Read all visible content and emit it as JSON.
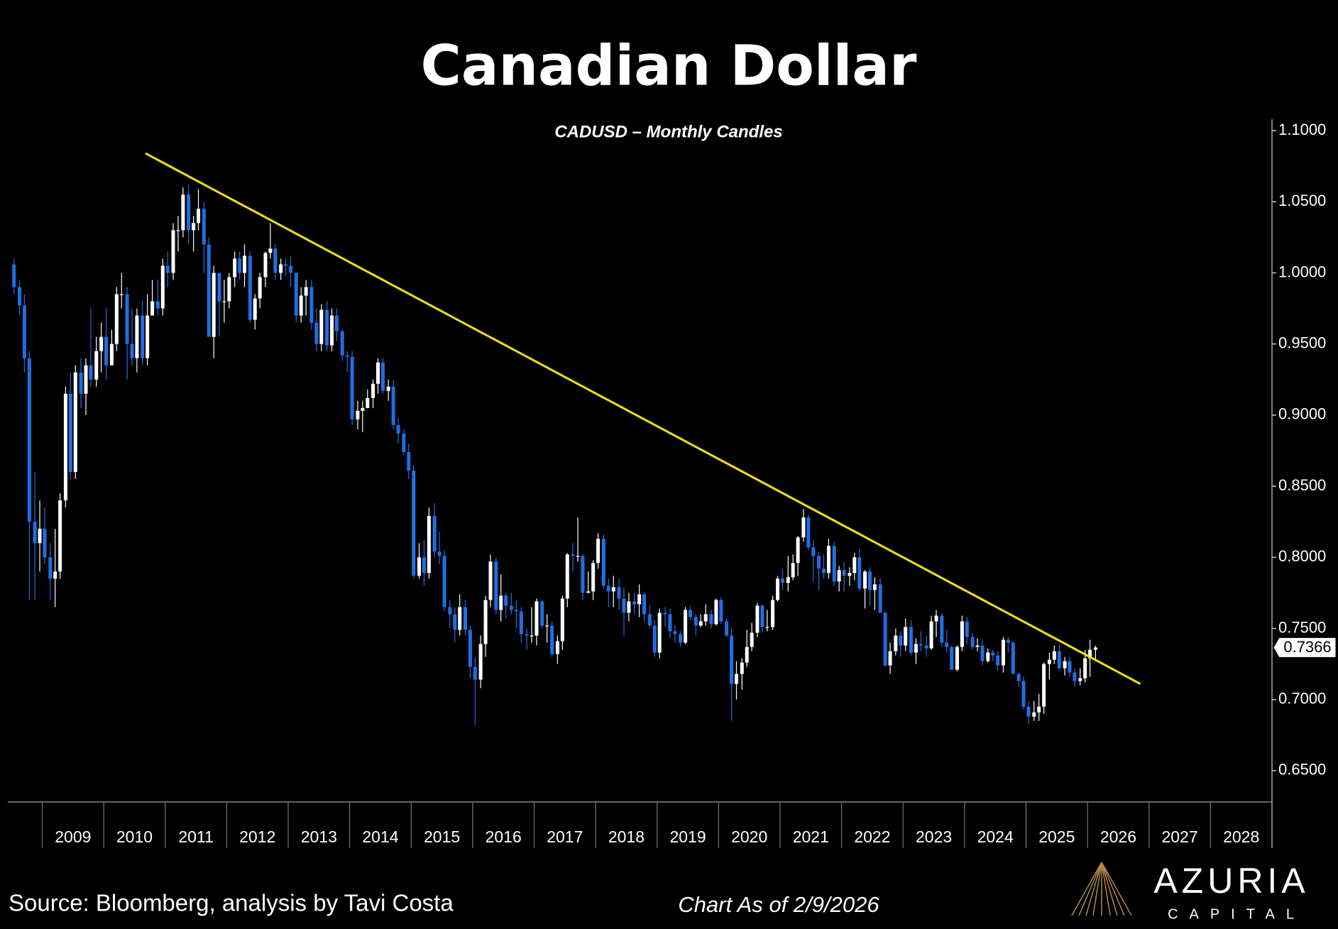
{
  "chart_data": {
    "type": "candlestick",
    "title": "Canadian Dollar",
    "subtitle": "CADUSD – Monthly Candles",
    "up_color": "#ffffff",
    "down_color": "#1f6fe3",
    "xlim": [
      2008.44,
      2029
    ],
    "xticks": [
      2009,
      2010,
      2011,
      2012,
      2013,
      2014,
      2015,
      2016,
      2017,
      2018,
      2019,
      2020,
      2021,
      2022,
      2023,
      2024,
      2025,
      2026,
      2027,
      2028
    ],
    "ylim": [
      0.628,
      1.108
    ],
    "yticks": [
      {
        "value": 0.65,
        "label": "0.6500"
      },
      {
        "value": 0.7,
        "label": "0.7000"
      },
      {
        "value": 0.75,
        "label": "0.7500"
      },
      {
        "value": 0.8,
        "label": "0.8000"
      },
      {
        "value": 0.85,
        "label": "0.8500"
      },
      {
        "value": 0.9,
        "label": "0.9000"
      },
      {
        "value": 0.95,
        "label": "0.9500"
      },
      {
        "value": 1.0,
        "label": "1.0000"
      },
      {
        "value": 1.05,
        "label": "1.0500"
      },
      {
        "value": 1.1,
        "label": "1.1000"
      }
    ],
    "trendline": {
      "color": "#f2e21a",
      "x": [
        2010.68,
        2026.86
      ],
      "y": [
        1.084,
        0.711
      ]
    },
    "x": [
      2008.54,
      2008.63,
      2008.71,
      2008.79,
      2008.88,
      2008.96,
      2009.04,
      2009.13,
      2009.21,
      2009.29,
      2009.38,
      2009.46,
      2009.54,
      2009.63,
      2009.71,
      2009.79,
      2009.88,
      2009.96,
      2010.04,
      2010.13,
      2010.21,
      2010.29,
      2010.38,
      2010.46,
      2010.54,
      2010.63,
      2010.71,
      2010.79,
      2010.88,
      2010.96,
      2011.04,
      2011.13,
      2011.21,
      2011.29,
      2011.38,
      2011.46,
      2011.54,
      2011.63,
      2011.71,
      2011.79,
      2011.88,
      2011.96,
      2012.04,
      2012.13,
      2012.21,
      2012.29,
      2012.38,
      2012.46,
      2012.54,
      2012.63,
      2012.71,
      2012.79,
      2012.88,
      2012.96,
      2013.04,
      2013.13,
      2013.21,
      2013.29,
      2013.38,
      2013.46,
      2013.54,
      2013.63,
      2013.71,
      2013.79,
      2013.88,
      2013.96,
      2014.04,
      2014.13,
      2014.21,
      2014.29,
      2014.38,
      2014.46,
      2014.54,
      2014.63,
      2014.71,
      2014.79,
      2014.88,
      2014.96,
      2015.04,
      2015.13,
      2015.21,
      2015.29,
      2015.38,
      2015.46,
      2015.54,
      2015.63,
      2015.71,
      2015.79,
      2015.88,
      2015.96,
      2016.04,
      2016.13,
      2016.21,
      2016.29,
      2016.38,
      2016.46,
      2016.54,
      2016.63,
      2016.71,
      2016.79,
      2016.88,
      2016.96,
      2017.04,
      2017.13,
      2017.21,
      2017.29,
      2017.38,
      2017.46,
      2017.54,
      2017.63,
      2017.71,
      2017.79,
      2017.88,
      2017.96,
      2018.04,
      2018.13,
      2018.21,
      2018.29,
      2018.38,
      2018.46,
      2018.54,
      2018.63,
      2018.71,
      2018.79,
      2018.88,
      2018.96,
      2019.04,
      2019.13,
      2019.21,
      2019.29,
      2019.38,
      2019.46,
      2019.54,
      2019.63,
      2019.71,
      2019.79,
      2019.88,
      2019.96,
      2020.04,
      2020.13,
      2020.21,
      2020.29,
      2020.38,
      2020.46,
      2020.54,
      2020.63,
      2020.71,
      2020.79,
      2020.88,
      2020.96,
      2021.04,
      2021.13,
      2021.21,
      2021.29,
      2021.38,
      2021.46,
      2021.54,
      2021.63,
      2021.71,
      2021.79,
      2021.88,
      2021.96,
      2022.04,
      2022.13,
      2022.21,
      2022.29,
      2022.38,
      2022.46,
      2022.54,
      2022.63,
      2022.71,
      2022.79,
      2022.88,
      2022.96,
      2023.04,
      2023.13,
      2023.21,
      2023.29,
      2023.38,
      2023.46,
      2023.54,
      2023.63,
      2023.71,
      2023.79,
      2023.88,
      2023.96,
      2024.04,
      2024.13,
      2024.21,
      2024.29,
      2024.38,
      2024.46,
      2024.54,
      2024.63,
      2024.71,
      2024.79,
      2024.88,
      2024.96,
      2025.04,
      2025.13,
      2025.21,
      2025.29,
      2025.38,
      2025.46,
      2025.54,
      2025.63,
      2025.71,
      2025.79,
      2025.88,
      2025.96,
      2026.04,
      2026.13
    ],
    "open": [
      1.006,
      0.99,
      0.977,
      0.94,
      0.825,
      0.81,
      0.82,
      0.8,
      0.785,
      0.79,
      0.84,
      0.915,
      0.86,
      0.93,
      0.915,
      0.935,
      0.925,
      0.945,
      0.955,
      0.935,
      0.95,
      0.985,
      0.985,
      0.95,
      0.94,
      0.97,
      0.94,
      0.97,
      0.98,
      0.975,
      1.005,
      1.0,
      1.03,
      1.03,
      1.055,
      1.03,
      1.035,
      1.045,
      1.02,
      0.955,
      1.0,
      0.98,
      0.98,
      0.997,
      1.01,
      1.0,
      1.012,
      0.967,
      0.982,
      0.997,
      1.014,
      1.017,
      1.0,
      1.006,
      1.005,
      1.0,
      0.97,
      0.984,
      0.99,
      0.965,
      0.95,
      0.974,
      0.949,
      0.97,
      0.959,
      0.942,
      0.941,
      0.897,
      0.903,
      0.905,
      0.912,
      0.922,
      0.937,
      0.917,
      0.92,
      0.893,
      0.887,
      0.874,
      0.861,
      0.787,
      0.8,
      0.789,
      0.829,
      0.804,
      0.801,
      0.765,
      0.76,
      0.749,
      0.765,
      0.749,
      0.723,
      0.714,
      0.739,
      0.77,
      0.797,
      0.763,
      0.773,
      0.766,
      0.763,
      0.762,
      0.746,
      0.745,
      0.745,
      0.769,
      0.752,
      0.752,
      0.732,
      0.741,
      0.771,
      0.802,
      0.801,
      0.801,
      0.775,
      0.776,
      0.796,
      0.813,
      0.78,
      0.776,
      0.779,
      0.771,
      0.761,
      0.769,
      0.767,
      0.774,
      0.76,
      0.752,
      0.733,
      0.761,
      0.76,
      0.748,
      0.746,
      0.74,
      0.763,
      0.758,
      0.752,
      0.755,
      0.76,
      0.753,
      0.77,
      0.755,
      0.745,
      0.711,
      0.718,
      0.726,
      0.737,
      0.747,
      0.766,
      0.751,
      0.751,
      0.77,
      0.785,
      0.782,
      0.786,
      0.796,
      0.814,
      0.828,
      0.807,
      0.801,
      0.792,
      0.789,
      0.808,
      0.783,
      0.791,
      0.787,
      0.789,
      0.8,
      0.778,
      0.79,
      0.777,
      0.781,
      0.761,
      0.724,
      0.734,
      0.745,
      0.738,
      0.751,
      0.733,
      0.739,
      0.738,
      0.736,
      0.755,
      0.759,
      0.74,
      0.737,
      0.721,
      0.737,
      0.755,
      0.744,
      0.737,
      0.738,
      0.727,
      0.733,
      0.731,
      0.724,
      0.742,
      0.74,
      0.718,
      0.713,
      0.695,
      0.688,
      0.691,
      0.695,
      0.725,
      0.728,
      0.734,
      0.722,
      0.727,
      0.719,
      0.713,
      0.715,
      0.729,
      0.735
    ],
    "high": [
      1.01,
      0.995,
      0.985,
      0.945,
      0.86,
      0.84,
      0.835,
      0.81,
      0.82,
      0.845,
      0.92,
      0.93,
      0.935,
      0.94,
      0.94,
      0.975,
      0.955,
      0.965,
      0.975,
      0.96,
      0.99,
      1.0,
      0.99,
      0.975,
      0.975,
      0.98,
      0.985,
      0.995,
      0.995,
      1.01,
      1.015,
      1.035,
      1.04,
      1.06,
      1.062,
      1.04,
      1.059,
      1.05,
      1.025,
      1.005,
      1.0,
      0.995,
      1.0,
      1.015,
      1.015,
      1.02,
      1.015,
      0.985,
      1.0,
      1.015,
      1.035,
      1.02,
      1.01,
      1.01,
      1.012,
      1.0,
      0.99,
      0.995,
      0.995,
      0.975,
      0.978,
      0.98,
      0.975,
      0.975,
      0.96,
      0.945,
      0.945,
      0.91,
      0.91,
      0.918,
      0.925,
      0.94,
      0.94,
      0.925,
      0.925,
      0.898,
      0.89,
      0.88,
      0.865,
      0.81,
      0.812,
      0.835,
      0.838,
      0.818,
      0.805,
      0.77,
      0.765,
      0.774,
      0.77,
      0.752,
      0.73,
      0.745,
      0.773,
      0.802,
      0.8,
      0.788,
      0.775,
      0.775,
      0.77,
      0.765,
      0.75,
      0.765,
      0.771,
      0.77,
      0.76,
      0.755,
      0.745,
      0.773,
      0.803,
      0.81,
      0.828,
      0.802,
      0.79,
      0.798,
      0.817,
      0.816,
      0.785,
      0.787,
      0.785,
      0.779,
      0.775,
      0.775,
      0.781,
      0.775,
      0.766,
      0.756,
      0.764,
      0.765,
      0.764,
      0.752,
      0.748,
      0.765,
      0.766,
      0.76,
      0.76,
      0.767,
      0.763,
      0.771,
      0.772,
      0.757,
      0.75,
      0.727,
      0.729,
      0.749,
      0.754,
      0.768,
      0.767,
      0.763,
      0.773,
      0.787,
      0.792,
      0.801,
      0.802,
      0.815,
      0.834,
      0.83,
      0.812,
      0.804,
      0.802,
      0.813,
      0.811,
      0.794,
      0.797,
      0.793,
      0.803,
      0.806,
      0.791,
      0.793,
      0.786,
      0.785,
      0.762,
      0.74,
      0.75,
      0.748,
      0.757,
      0.756,
      0.743,
      0.748,
      0.745,
      0.759,
      0.763,
      0.761,
      0.749,
      0.738,
      0.738,
      0.759,
      0.758,
      0.747,
      0.743,
      0.742,
      0.736,
      0.735,
      0.734,
      0.744,
      0.744,
      0.741,
      0.719,
      0.716,
      0.699,
      0.699,
      0.704,
      0.726,
      0.733,
      0.738,
      0.739,
      0.73,
      0.73,
      0.722,
      0.722,
      0.735,
      0.742,
      0.738
    ],
    "low": [
      0.985,
      0.97,
      0.93,
      0.77,
      0.77,
      0.79,
      0.795,
      0.77,
      0.765,
      0.785,
      0.835,
      0.855,
      0.855,
      0.905,
      0.9,
      0.92,
      0.92,
      0.93,
      0.925,
      0.935,
      0.945,
      0.975,
      0.925,
      0.935,
      0.93,
      0.935,
      0.935,
      0.97,
      0.97,
      0.97,
      0.99,
      0.995,
      1.015,
      1.025,
      1.02,
      1.015,
      1.03,
      1.0,
      0.955,
      0.94,
      0.955,
      0.965,
      0.975,
      0.99,
      0.995,
      0.99,
      0.965,
      0.96,
      0.975,
      0.99,
      1.01,
      0.995,
      0.995,
      0.998,
      0.99,
      0.965,
      0.965,
      0.97,
      0.96,
      0.945,
      0.945,
      0.945,
      0.945,
      0.952,
      0.938,
      0.93,
      0.893,
      0.89,
      0.888,
      0.905,
      0.905,
      0.915,
      0.915,
      0.91,
      0.89,
      0.88,
      0.872,
      0.855,
      0.785,
      0.785,
      0.78,
      0.785,
      0.8,
      0.795,
      0.762,
      0.75,
      0.74,
      0.745,
      0.745,
      0.715,
      0.682,
      0.708,
      0.73,
      0.765,
      0.76,
      0.755,
      0.757,
      0.76,
      0.75,
      0.74,
      0.735,
      0.74,
      0.738,
      0.75,
      0.74,
      0.73,
      0.725,
      0.735,
      0.765,
      0.79,
      0.797,
      0.77,
      0.775,
      0.77,
      0.792,
      0.778,
      0.765,
      0.765,
      0.763,
      0.745,
      0.755,
      0.76,
      0.758,
      0.755,
      0.75,
      0.73,
      0.729,
      0.751,
      0.743,
      0.74,
      0.737,
      0.739,
      0.756,
      0.745,
      0.751,
      0.752,
      0.75,
      0.752,
      0.753,
      0.744,
      0.685,
      0.7,
      0.707,
      0.723,
      0.734,
      0.744,
      0.747,
      0.748,
      0.749,
      0.769,
      0.777,
      0.776,
      0.784,
      0.787,
      0.811,
      0.805,
      0.783,
      0.777,
      0.785,
      0.785,
      0.78,
      0.776,
      0.776,
      0.78,
      0.784,
      0.776,
      0.764,
      0.766,
      0.763,
      0.761,
      0.723,
      0.718,
      0.731,
      0.73,
      0.734,
      0.731,
      0.725,
      0.734,
      0.73,
      0.735,
      0.744,
      0.737,
      0.733,
      0.721,
      0.72,
      0.734,
      0.739,
      0.735,
      0.734,
      0.724,
      0.726,
      0.727,
      0.72,
      0.719,
      0.733,
      0.718,
      0.709,
      0.693,
      0.683,
      0.685,
      0.685,
      0.69,
      0.714,
      0.725,
      0.721,
      0.717,
      0.716,
      0.709,
      0.71,
      0.712,
      0.716,
      0.728
    ],
    "close": [
      0.99,
      0.977,
      0.94,
      0.825,
      0.81,
      0.82,
      0.8,
      0.785,
      0.79,
      0.84,
      0.915,
      0.86,
      0.93,
      0.915,
      0.935,
      0.925,
      0.945,
      0.955,
      0.935,
      0.95,
      0.985,
      0.985,
      0.95,
      0.94,
      0.97,
      0.94,
      0.97,
      0.98,
      0.975,
      1.005,
      1.0,
      1.03,
      1.03,
      1.055,
      1.03,
      1.035,
      1.045,
      1.02,
      0.955,
      1.0,
      0.98,
      0.98,
      0.997,
      1.01,
      1.0,
      1.012,
      0.967,
      0.982,
      0.997,
      1.014,
      1.017,
      1.0,
      1.006,
      1.005,
      1.0,
      0.97,
      0.984,
      0.99,
      0.965,
      0.95,
      0.974,
      0.949,
      0.97,
      0.959,
      0.942,
      0.941,
      0.897,
      0.903,
      0.905,
      0.912,
      0.922,
      0.937,
      0.917,
      0.92,
      0.893,
      0.887,
      0.874,
      0.861,
      0.787,
      0.8,
      0.789,
      0.829,
      0.804,
      0.801,
      0.765,
      0.76,
      0.749,
      0.765,
      0.749,
      0.723,
      0.714,
      0.739,
      0.77,
      0.797,
      0.763,
      0.773,
      0.766,
      0.763,
      0.762,
      0.746,
      0.745,
      0.745,
      0.769,
      0.752,
      0.752,
      0.732,
      0.741,
      0.771,
      0.802,
      0.801,
      0.801,
      0.775,
      0.776,
      0.796,
      0.813,
      0.78,
      0.776,
      0.779,
      0.771,
      0.761,
      0.769,
      0.767,
      0.774,
      0.76,
      0.752,
      0.733,
      0.761,
      0.76,
      0.748,
      0.746,
      0.74,
      0.763,
      0.758,
      0.752,
      0.755,
      0.76,
      0.753,
      0.77,
      0.755,
      0.745,
      0.711,
      0.718,
      0.726,
      0.737,
      0.747,
      0.766,
      0.751,
      0.751,
      0.77,
      0.785,
      0.782,
      0.786,
      0.796,
      0.814,
      0.828,
      0.807,
      0.801,
      0.792,
      0.789,
      0.808,
      0.783,
      0.791,
      0.787,
      0.789,
      0.8,
      0.778,
      0.79,
      0.777,
      0.781,
      0.761,
      0.724,
      0.734,
      0.745,
      0.738,
      0.751,
      0.733,
      0.739,
      0.738,
      0.736,
      0.755,
      0.759,
      0.74,
      0.737,
      0.721,
      0.737,
      0.755,
      0.744,
      0.737,
      0.738,
      0.727,
      0.733,
      0.731,
      0.724,
      0.742,
      0.74,
      0.718,
      0.713,
      0.695,
      0.688,
      0.691,
      0.695,
      0.725,
      0.728,
      0.734,
      0.722,
      0.727,
      0.719,
      0.713,
      0.715,
      0.729,
      0.735,
      0.7366
    ]
  },
  "footer": {
    "source": "Source: Bloomberg, analysis by Tavi Costa",
    "as_of": "Chart As of 2/9/2026",
    "logo_name": "AZURIA",
    "logo_tagline": "CAPITAL"
  }
}
